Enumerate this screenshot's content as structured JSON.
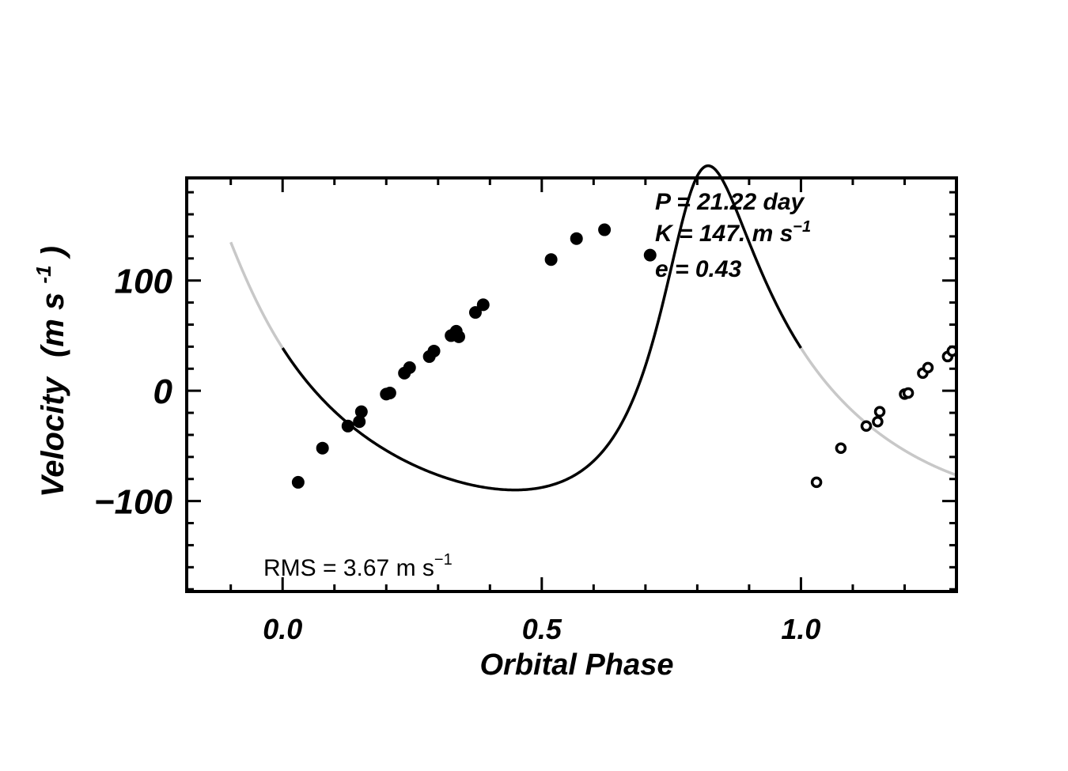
{
  "chart_data": {
    "type": "scatter",
    "xlabel": "Orbital Phase",
    "ylabel_main": "Velocity",
    "ylabel_units": "(m s",
    "ylabel_units_exp": "-1",
    "ylabel_units_close": ")",
    "xlim": [
      -0.185,
      1.3
    ],
    "ylim": [
      -182,
      193
    ],
    "x_ticks": [
      {
        "value": 0.0,
        "label": "0.0"
      },
      {
        "value": 0.5,
        "label": "0.5"
      },
      {
        "value": 1.0,
        "label": "1.0"
      }
    ],
    "y_ticks": [
      {
        "value": 100,
        "label": "100"
      },
      {
        "value": 0,
        "label": "0"
      },
      {
        "value": -100,
        "label": "−100"
      }
    ],
    "x_minor_step": 0.1,
    "y_minor_step": 20,
    "grid": false,
    "annotations": {
      "period": "P = 21.22 day",
      "amplitude": "K = 147. m s",
      "amplitude_exp": "−1",
      "eccentricity": "e = 0.43",
      "rms": "RMS = 3.67 m s",
      "rms_exp": "−1"
    },
    "model": {
      "P": 21.22,
      "K": 147,
      "e": 0.43,
      "omega_deg": -25.5,
      "offset": 0,
      "phase_of_periastron": 0.795,
      "color_main": "#000000",
      "color_extended": "#c8c8c8"
    },
    "series": [
      {
        "style": "filled",
        "color": "#000000",
        "x": [
          0.03,
          0.077,
          0.126,
          0.148,
          0.152,
          0.2,
          0.207,
          0.235,
          0.245,
          0.283,
          0.292,
          0.325,
          0.335,
          0.34,
          0.372,
          0.387,
          0.518,
          0.567,
          0.621,
          0.709
        ],
        "y": [
          -83,
          -52,
          -32,
          -28,
          -19,
          -3,
          -2,
          16,
          21,
          31,
          36,
          50,
          54,
          49,
          71,
          78,
          119,
          138,
          146,
          123
        ]
      },
      {
        "style": "open",
        "color": "#000000",
        "x": [
          1.03,
          1.077,
          1.126,
          1.148,
          1.152,
          1.2,
          1.207,
          1.235,
          1.245,
          1.283,
          1.292
        ],
        "y": [
          -83,
          -52,
          -32,
          -28,
          -19,
          -3,
          -2,
          16,
          21,
          31,
          36
        ]
      }
    ]
  }
}
